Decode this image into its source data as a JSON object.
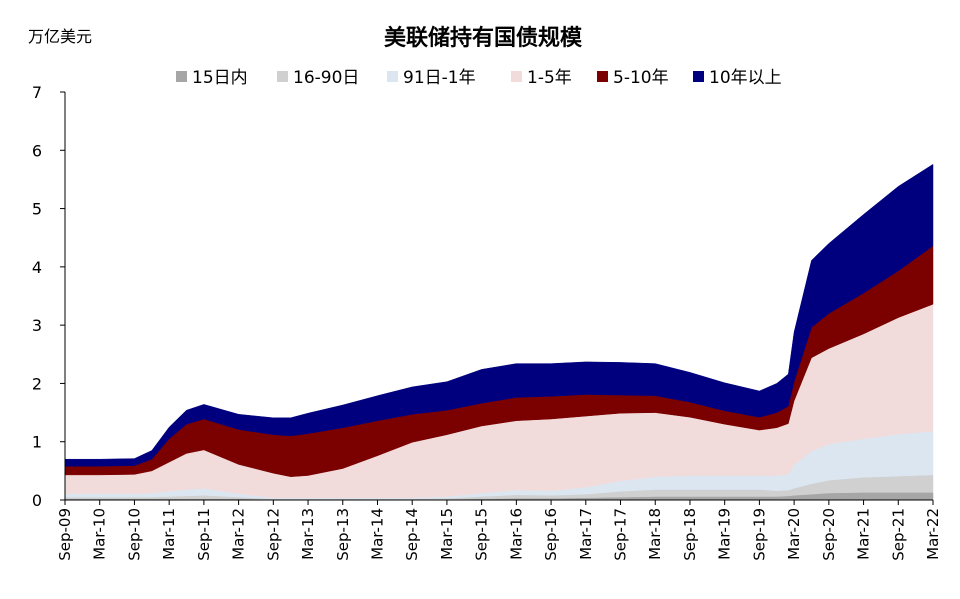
{
  "chart_data": {
    "type": "area",
    "stacked": true,
    "title": "美联储持有国债规模",
    "ylabel": "万亿美元",
    "xlabel": "",
    "ylim": [
      0,
      7
    ],
    "yticks": [
      0,
      1,
      2,
      3,
      4,
      5,
      6,
      7
    ],
    "grid": false,
    "legend_position": "top",
    "x_tick_labels": [
      "Sep-09",
      "Mar-10",
      "Sep-10",
      "Mar-11",
      "Sep-11",
      "Mar-12",
      "Sep-12",
      "Mar-13",
      "Sep-13",
      "Mar-14",
      "Sep-14",
      "Mar-15",
      "Sep-15",
      "Mar-16",
      "Sep-16",
      "Mar-17",
      "Sep-17",
      "Mar-18",
      "Sep-18",
      "Mar-19",
      "Sep-19",
      "Mar-20",
      "Sep-20",
      "Mar-21",
      "Sep-21",
      "Mar-22"
    ],
    "x": [
      "2009-09",
      "2010-03",
      "2010-09",
      "2010-12",
      "2011-03",
      "2011-06",
      "2011-09",
      "2012-03",
      "2012-09",
      "2012-12",
      "2013-03",
      "2013-09",
      "2014-03",
      "2014-09",
      "2015-03",
      "2015-09",
      "2016-03",
      "2016-09",
      "2017-03",
      "2017-09",
      "2018-03",
      "2018-09",
      "2019-03",
      "2019-09",
      "2019-12",
      "2020-02",
      "2020-03",
      "2020-06",
      "2020-09",
      "2021-03",
      "2021-09",
      "2022-03"
    ],
    "series": [
      {
        "name": "15日内",
        "color": "#a6a6a6",
        "values": [
          0.02,
          0.02,
          0.02,
          0.02,
          0.02,
          0.02,
          0.02,
          0.02,
          0.01,
          0.01,
          0.01,
          0.01,
          0.01,
          0.01,
          0.01,
          0.02,
          0.03,
          0.03,
          0.04,
          0.05,
          0.06,
          0.06,
          0.06,
          0.06,
          0.06,
          0.07,
          0.08,
          0.1,
          0.12,
          0.13,
          0.13,
          0.13
        ]
      },
      {
        "name": "16-90日",
        "color": "#d0d0d0",
        "values": [
          0.03,
          0.03,
          0.03,
          0.03,
          0.04,
          0.05,
          0.06,
          0.03,
          0.01,
          0.01,
          0.01,
          0.01,
          0.01,
          0.01,
          0.02,
          0.04,
          0.06,
          0.05,
          0.06,
          0.1,
          0.12,
          0.12,
          0.12,
          0.12,
          0.1,
          0.1,
          0.12,
          0.18,
          0.22,
          0.26,
          0.28,
          0.3
        ]
      },
      {
        "name": "91日-1年",
        "color": "#dce6f1",
        "values": [
          0.06,
          0.06,
          0.06,
          0.07,
          0.09,
          0.11,
          0.12,
          0.06,
          0.02,
          0.02,
          0.02,
          0.02,
          0.02,
          0.02,
          0.03,
          0.06,
          0.08,
          0.08,
          0.12,
          0.18,
          0.22,
          0.24,
          0.24,
          0.24,
          0.26,
          0.28,
          0.4,
          0.56,
          0.62,
          0.66,
          0.72,
          0.75
        ]
      },
      {
        "name": "1-5年",
        "color": "#f2dcdb",
        "values": [
          0.32,
          0.32,
          0.33,
          0.38,
          0.5,
          0.62,
          0.66,
          0.5,
          0.42,
          0.36,
          0.38,
          0.5,
          0.72,
          0.95,
          1.06,
          1.15,
          1.19,
          1.23,
          1.22,
          1.16,
          1.1,
          1.0,
          0.88,
          0.78,
          0.82,
          0.86,
          1.1,
          1.6,
          1.64,
          1.8,
          2.0,
          2.18
        ]
      },
      {
        "name": "5-10年",
        "color": "#7b0000",
        "values": [
          0.15,
          0.15,
          0.15,
          0.2,
          0.4,
          0.5,
          0.53,
          0.6,
          0.66,
          0.7,
          0.72,
          0.7,
          0.6,
          0.48,
          0.42,
          0.39,
          0.4,
          0.39,
          0.37,
          0.31,
          0.29,
          0.26,
          0.23,
          0.22,
          0.26,
          0.3,
          0.33,
          0.52,
          0.6,
          0.7,
          0.8,
          1.0
        ]
      },
      {
        "name": "10年以上",
        "color": "#00007f",
        "values": [
          0.12,
          0.12,
          0.12,
          0.15,
          0.2,
          0.24,
          0.25,
          0.26,
          0.29,
          0.31,
          0.35,
          0.39,
          0.43,
          0.47,
          0.49,
          0.58,
          0.58,
          0.56,
          0.56,
          0.56,
          0.55,
          0.51,
          0.48,
          0.45,
          0.5,
          0.55,
          0.85,
          1.15,
          1.2,
          1.35,
          1.45,
          1.4
        ]
      }
    ]
  }
}
